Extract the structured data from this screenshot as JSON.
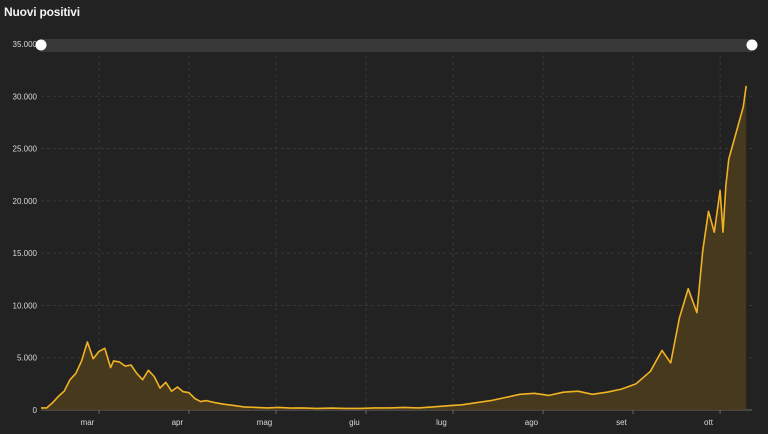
{
  "header": {
    "title": "Nuovi positivi"
  },
  "colors": {
    "background": "#222222",
    "line": "#f0b323",
    "area": "#4a3c1d",
    "grid": "#3e3e3e",
    "scrollbar": "#393939"
  },
  "chart_data": {
    "type": "area",
    "title": "Nuovi positivi",
    "xlabel": "",
    "ylabel": "",
    "grid": true,
    "ylim": [
      0,
      35000
    ],
    "y_ticks": [
      "0",
      "5.000",
      "10.000",
      "15.000",
      "20.000",
      "25.000",
      "30.000",
      "35.000"
    ],
    "y_tick_values": [
      0,
      5000,
      10000,
      15000,
      20000,
      25000,
      30000,
      35000
    ],
    "x_ticks": [
      "mar",
      "apr",
      "mag",
      "giu",
      "lug",
      "ago",
      "set",
      "ott"
    ],
    "x_tick_days": [
      8,
      39,
      69,
      100,
      130,
      161,
      192,
      222
    ],
    "x_start": "2020-02-24",
    "series": [
      {
        "name": "Nuovi positivi",
        "x_days": [
          0,
          2,
          4,
          6,
          8,
          10,
          12,
          14,
          16,
          18,
          20,
          22,
          24,
          25,
          27,
          29,
          31,
          33,
          35,
          37,
          39,
          41,
          43,
          45,
          47,
          49,
          51,
          53,
          55,
          57,
          60,
          63,
          66,
          70,
          74,
          78,
          82,
          86,
          90,
          95,
          100,
          105,
          110,
          115,
          120,
          125,
          130,
          135,
          140,
          145,
          150,
          155,
          160,
          165,
          170,
          175,
          180,
          185,
          190,
          195,
          200,
          205,
          210,
          214,
          217,
          220,
          223,
          226,
          228,
          230,
          232,
          234,
          235,
          236,
          237,
          238,
          239,
          240,
          242,
          243
        ],
        "values": [
          200,
          200,
          700,
          1300,
          1800,
          2900,
          3500,
          4700,
          6500,
          4900,
          5600,
          5900,
          4050,
          4700,
          4600,
          4200,
          4300,
          3500,
          2900,
          3800,
          3200,
          2100,
          2650,
          1800,
          2200,
          1750,
          1650,
          1100,
          800,
          900,
          700,
          550,
          450,
          300,
          250,
          200,
          250,
          180,
          200,
          150,
          180,
          150,
          150,
          200,
          200,
          250,
          200,
          300,
          400,
          500,
          700,
          900,
          1200,
          1500,
          1600,
          1400,
          1700,
          1800,
          1500,
          1700,
          2000,
          2500,
          3700,
          5700,
          4500,
          8800,
          11600,
          9300,
          15200,
          19000,
          17000,
          21000,
          17000,
          21500,
          24000,
          25000,
          26000,
          27000,
          29000,
          31000
        ]
      }
    ]
  }
}
